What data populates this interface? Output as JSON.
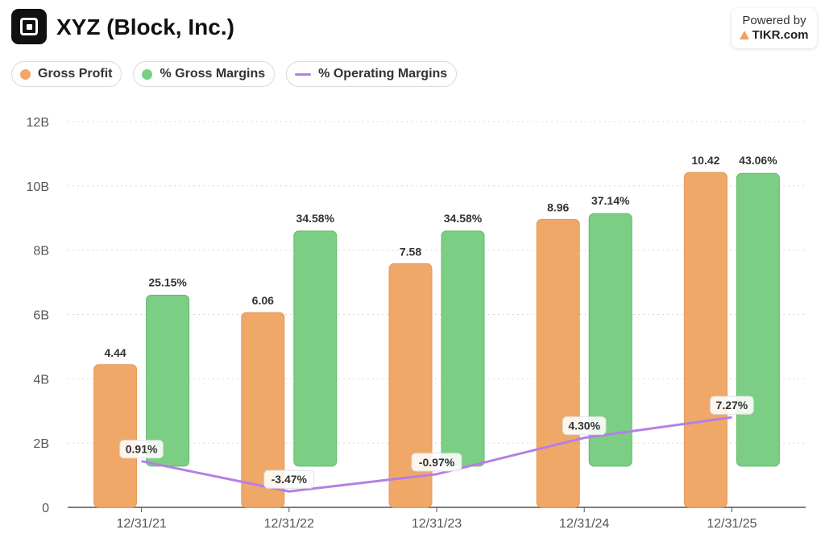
{
  "header": {
    "title": "XYZ (Block, Inc.)",
    "powered_by": "Powered by",
    "brand": "TIKR.com",
    "logo_icon": "block-square-logo"
  },
  "legend": [
    {
      "label": "Gross Profit",
      "color": "#f0a868",
      "kind": "dot"
    },
    {
      "label": "% Gross Margins",
      "color": "#7cce85",
      "kind": "dot"
    },
    {
      "label": "% Operating Margins",
      "color": "#b47fe6",
      "kind": "line"
    }
  ],
  "chart_data": {
    "type": "bar",
    "categories": [
      "12/31/21",
      "12/31/22",
      "12/31/23",
      "12/31/24",
      "12/31/25"
    ],
    "ylim": [
      0,
      12
    ],
    "yticks": [
      "0",
      "2B",
      "4B",
      "6B",
      "8B",
      "10B",
      "12B"
    ],
    "grid": true,
    "legend_position": "top-left",
    "series": [
      {
        "name": "Gross Profit",
        "type": "bar",
        "color": "#f0a868",
        "values": [
          4.44,
          6.06,
          7.58,
          8.96,
          10.42
        ],
        "labels": [
          "4.44",
          "6.06",
          "7.58",
          "8.96",
          "10.42"
        ]
      },
      {
        "name": "% Gross Margins",
        "type": "bar",
        "color": "#7cce85",
        "values": [
          25.15,
          34.58,
          34.58,
          37.14,
          43.06
        ],
        "labels": [
          "25.15%",
          "34.58%",
          "34.58%",
          "37.14%",
          "43.06%"
        ]
      },
      {
        "name": "% Operating Margins",
        "type": "line",
        "color": "#b47fe6",
        "values": [
          0.91,
          -3.47,
          -0.97,
          4.3,
          7.27
        ],
        "labels": [
          "0.91%",
          "-3.47%",
          "-0.97%",
          "4.30%",
          "7.27%"
        ]
      }
    ]
  }
}
